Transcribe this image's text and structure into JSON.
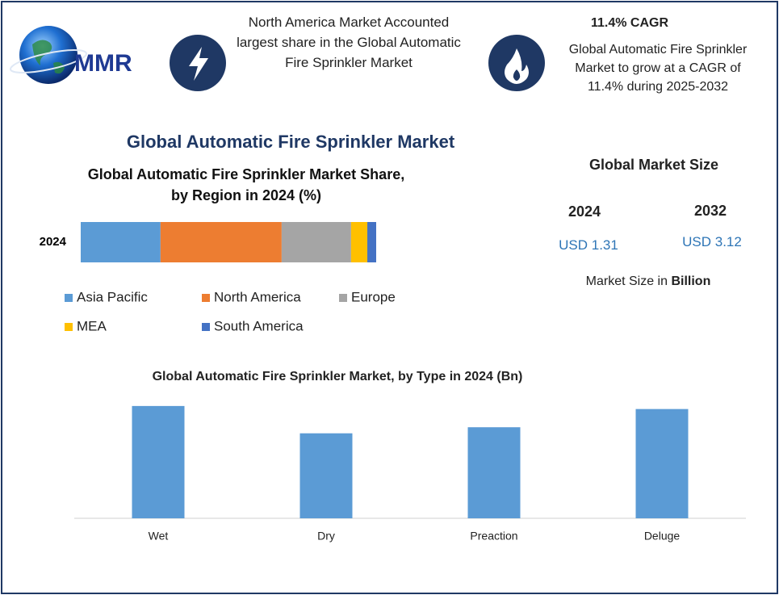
{
  "header": {
    "logo_text": "MMR",
    "highlight_1": "North America Market Accounted largest share in the Global Automatic Fire Sprinkler Market",
    "highlight_2_title": "11.4% CAGR",
    "highlight_2": "Global Automatic Fire Sprinkler Market to grow at a CAGR of 11.4% during 2025-2032"
  },
  "main_title": "Global Automatic Fire Sprinkler Market",
  "market_size": {
    "title": "Global Market Size",
    "years": [
      "2024",
      "2032"
    ],
    "amounts": [
      "USD 1.31",
      "USD 3.12"
    ],
    "note": "Market Size in",
    "unit": "Billion"
  },
  "chart_data": [
    {
      "type": "bar",
      "orientation": "horizontal",
      "stacked": true,
      "title": "Global Automatic Fire Sprinkler Market Share, by Region in 2024 (%)",
      "categories": [
        "2024"
      ],
      "xlim": [
        0,
        100
      ],
      "series": [
        {
          "name": "Asia Pacific",
          "color": "#5b9bd5",
          "values": [
            27.0
          ]
        },
        {
          "name": "North America",
          "color": "#ed7d31",
          "values": [
            41.0
          ]
        },
        {
          "name": "Europe",
          "color": "#a5a5a5",
          "values": [
            23.5
          ]
        },
        {
          "name": "MEA",
          "color": "#ffc000",
          "values": [
            5.5
          ]
        },
        {
          "name": "South America",
          "color": "#4472c4",
          "values": [
            3.0
          ]
        }
      ]
    },
    {
      "type": "bar",
      "title": "Global Automatic Fire Sprinkler Market, by Type in 2024 (Bn)",
      "categories": [
        "Wet",
        "Dry",
        "Preaction",
        "Deluge"
      ],
      "values": [
        0.37,
        0.28,
        0.3,
        0.36
      ],
      "color": "#5b9bd5",
      "ylim": [
        0,
        0.5
      ]
    }
  ]
}
